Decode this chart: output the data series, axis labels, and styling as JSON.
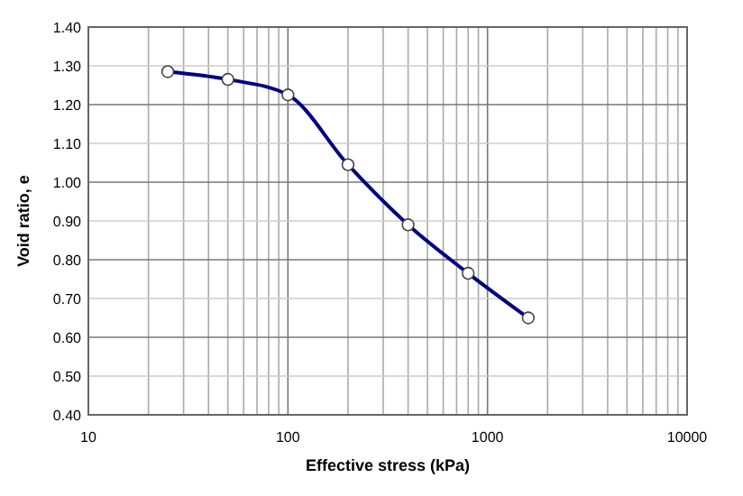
{
  "chart_data": {
    "type": "line",
    "xlabel": "Effective stress (kPa)",
    "ylabel": "Void ratio, e",
    "x": [
      25,
      50,
      100,
      200,
      400,
      800,
      1600
    ],
    "series": [
      {
        "color": "#000080",
        "values": [
          1.285,
          1.265,
          1.225,
          1.045,
          0.89,
          0.765,
          0.65
        ]
      }
    ],
    "log": "x",
    "xlim": [
      10,
      10000
    ],
    "ylim": [
      0.4,
      1.4
    ],
    "xticks": [
      10,
      {
        "value": 20,
        "label": null
      },
      {
        "value": 30,
        "label": null
      },
      {
        "value": 40,
        "label": null
      },
      {
        "value": 50,
        "label": null
      },
      {
        "value": 60,
        "label": null
      },
      {
        "value": 70,
        "label": null
      },
      {
        "value": 80,
        "label": null
      },
      {
        "value": 90,
        "label": null
      },
      100,
      {
        "value": 200,
        "label": null
      },
      {
        "value": 300,
        "label": null
      },
      {
        "value": 400,
        "label": null
      },
      {
        "value": 500,
        "label": null
      },
      {
        "value": 600,
        "label": null
      },
      {
        "value": 700,
        "label": null
      },
      {
        "value": 800,
        "label": null
      },
      {
        "value": 900,
        "label": null
      },
      1000,
      {
        "value": 2000,
        "label": null
      },
      {
        "value": 3000,
        "label": null
      },
      {
        "value": 4000,
        "label": null
      },
      {
        "value": 5000,
        "label": null
      },
      {
        "value": 6000,
        "label": null
      },
      {
        "value": 7000,
        "label": null
      },
      {
        "value": 8000,
        "label": null
      },
      {
        "value": 9000,
        "label": null
      },
      10000
    ],
    "yticks": [
      {
        "value": 0.4,
        "label": "0.40"
      },
      {
        "value": 0.5,
        "label": "0.50"
      },
      {
        "value": 0.6,
        "label": "0.60"
      },
      {
        "value": 0.7,
        "label": "0.70"
      },
      {
        "value": 0.8,
        "label": "0.80"
      },
      {
        "value": 0.9,
        "label": "0.90"
      },
      {
        "value": 1.0,
        "label": "1.00"
      },
      {
        "value": 1.1,
        "label": "1.10"
      },
      {
        "value": 1.2,
        "label": "1.20"
      },
      {
        "value": 1.3,
        "label": "1.30"
      },
      {
        "value": 1.4,
        "label": "1.40"
      }
    ],
    "grid": true,
    "marker": "circle",
    "line_style": "solid"
  }
}
